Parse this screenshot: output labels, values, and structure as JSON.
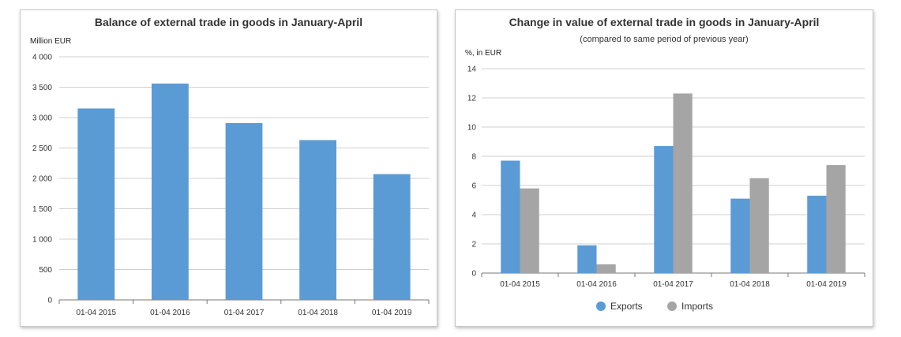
{
  "chart_data": [
    {
      "type": "bar",
      "title": "Balance of external trade in goods in January-April",
      "ylabel": "Million EUR",
      "categories": [
        "01-04 2015",
        "01-04 2016",
        "01-04 2017",
        "01-04 2018",
        "01-04 2019"
      ],
      "values": [
        3150,
        3560,
        2910,
        2630,
        2070
      ],
      "ylim": [
        0,
        4000
      ],
      "yticks": [
        0,
        500,
        1000,
        1500,
        2000,
        2500,
        3000,
        3500,
        4000
      ],
      "ytick_labels": [
        "0",
        "500",
        "1 000",
        "1 500",
        "2 000",
        "2 500",
        "3 000",
        "3 500",
        "4 000"
      ],
      "grid": true,
      "legend": "none",
      "colors": [
        "#5b9bd5"
      ]
    },
    {
      "type": "bar",
      "title": "Change in value of external trade in goods in January-April",
      "subtitle": "(compared to same period of previous year)",
      "ylabel": "%, in EUR",
      "categories": [
        "01-04 2015",
        "01-04 2016",
        "01-04 2017",
        "01-04 2018",
        "01-04 2019"
      ],
      "series": [
        {
          "name": "Exports",
          "values": [
            7.7,
            1.9,
            8.7,
            5.1,
            5.3
          ],
          "color": "#5b9bd5"
        },
        {
          "name": "Imports",
          "values": [
            5.8,
            0.6,
            12.3,
            6.5,
            7.4
          ],
          "color": "#a5a5a5"
        }
      ],
      "ylim": [
        0,
        14
      ],
      "yticks": [
        0,
        2,
        4,
        6,
        8,
        10,
        12,
        14
      ],
      "ytick_labels": [
        "0",
        "2",
        "4",
        "6",
        "8",
        "10",
        "12",
        "14"
      ],
      "grid": true,
      "legend": "bottom-center"
    }
  ]
}
